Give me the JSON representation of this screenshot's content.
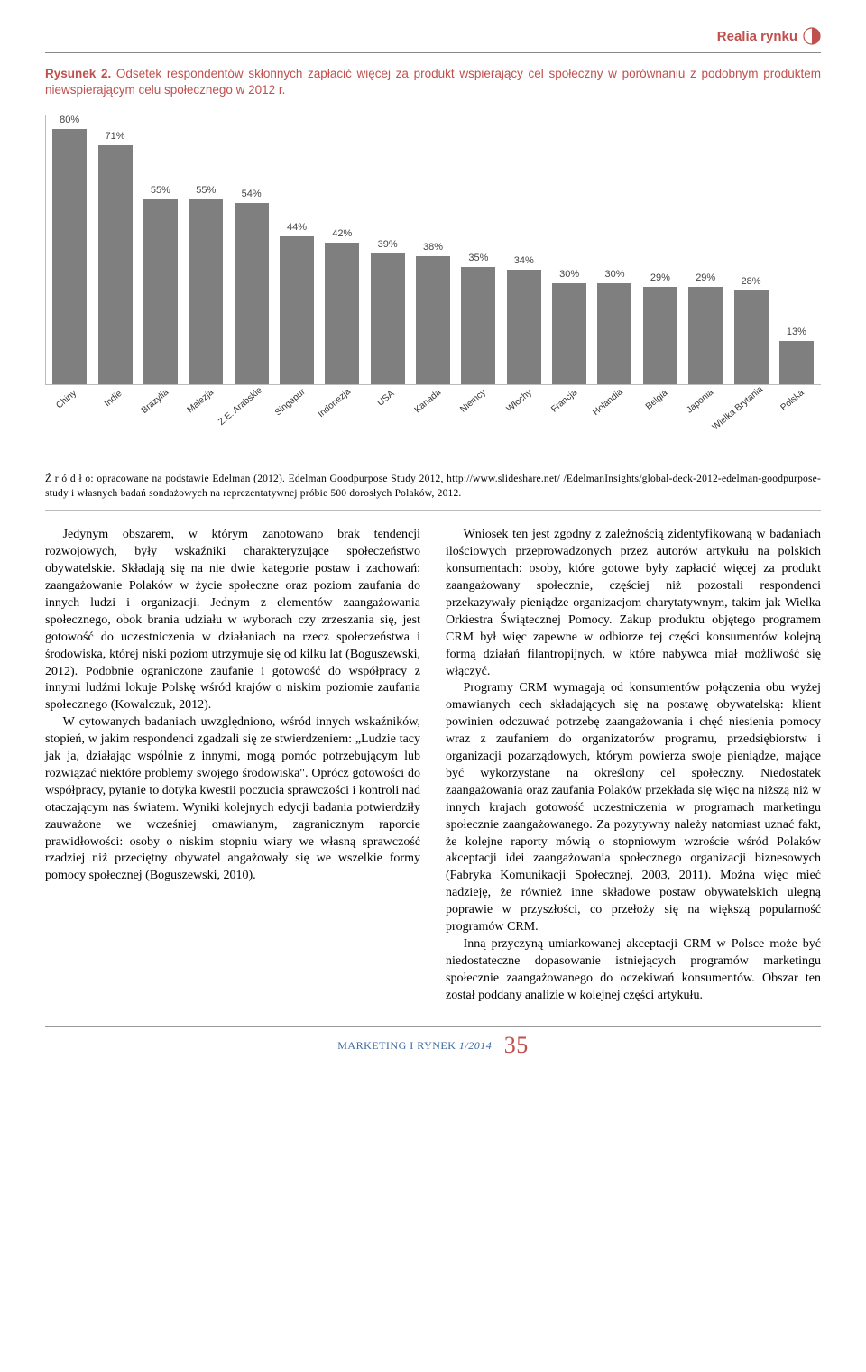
{
  "header": {
    "section_title": "Realia rynku"
  },
  "figure": {
    "label": "Rysunek 2.",
    "caption": "Odsetek respondentów skłonnych zapłacić więcej za produkt wspierający cel społeczny w porównaniu z podobnym produktem niewspierającym celu społecznego w 2012 r.",
    "type": "bar",
    "ylim": [
      0,
      80
    ],
    "bar_color": "#7f7f7f",
    "value_color": "#444444",
    "axis_color": "#bbbbbb",
    "background_color": "#ffffff",
    "value_fontsize": 11,
    "label_fontsize": 10,
    "categories": [
      "Chiny",
      "Indie",
      "Brazylia",
      "Malezja",
      "Z.E. Arabskie",
      "Singapur",
      "Indonezja",
      "USA",
      "Kanada",
      "Niemcy",
      "Włochy",
      "Francja",
      "Holandia",
      "Belgia",
      "Japonia",
      "Wielka Brytania",
      "Polska"
    ],
    "values": [
      80,
      71,
      55,
      55,
      54,
      44,
      42,
      39,
      38,
      35,
      34,
      30,
      30,
      29,
      29,
      28,
      13
    ],
    "value_labels": [
      "80%",
      "71%",
      "55%",
      "55%",
      "54%",
      "44%",
      "42%",
      "39%",
      "38%",
      "35%",
      "34%",
      "30%",
      "30%",
      "29%",
      "29%",
      "28%",
      "13%"
    ]
  },
  "source": {
    "prefix": "Ź r ó d ł o: ",
    "text": "opracowane na podstawie Edelman (2012). Edelman Goodpurpose Study 2012, http://www.slideshare.net/ /EdelmanInsights/global-deck-2012-edelman-goodpurpose-study i własnych badań sondażowych na reprezentatywnej próbie 500 dorosłych Polaków, 2012."
  },
  "body": {
    "p1": "Jedynym obszarem, w którym zanotowano brak tendencji rozwojowych, były wskaźniki charakteryzujące społeczeństwo obywatelskie. Składają się na nie dwie kategorie postaw i zachowań: zaangażowanie Polaków w życie społeczne oraz poziom zaufania do innych ludzi i organizacji. Jednym z elementów zaangażowania społecznego, obok brania udziału w wyborach czy zrzeszania się, jest gotowość do uczestniczenia w działaniach na rzecz społeczeństwa i środowiska, której niski poziom utrzymuje się od kilku lat (Boguszewski, 2012). Podobnie ograniczone zaufanie i gotowość do współpracy z innymi ludźmi lokuje Polskę wśród krajów o niskim poziomie zaufania społecznego (Kowalczuk, 2012).",
    "p2": "W cytowanych badaniach uwzględniono, wśród innych wskaźników, stopień, w jakim respondenci zgadzali się ze stwierdzeniem: „Ludzie tacy jak ja, działając wspólnie z innymi, mogą pomóc potrzebującym lub rozwiązać niektóre problemy swojego środowiska\". Oprócz gotowości do współpracy, pytanie to dotyka kwestii poczucia sprawczości i kontroli nad otaczającym nas światem. Wyniki kolejnych edycji badania potwierdziły zauważone we wcześniej omawianym, zagranicznym raporcie prawidłowości: osoby o niskim stopniu wiary we własną sprawczość rzadziej niż przeciętny obywatel angażowały się we wszelkie formy pomocy społecznej (Boguszewski, 2010).",
    "p3": "Wniosek ten jest zgodny z zależnością zidentyfikowaną w badaniach ilościowych przeprowadzonych przez autorów artykułu na polskich konsumentach: osoby, które gotowe były zapłacić więcej za produkt zaangażowany społecznie, częściej niż pozostali respondenci przekazywały pieniądze organizacjom charytatywnym, takim jak Wielka Orkiestra Świątecznej Pomocy. Zakup produktu objętego programem CRM był więc zapewne w odbiorze tej części konsumentów kolejną formą działań filantropijnych, w które nabywca miał możliwość się włączyć.",
    "p4": "Programy CRM wymagają od konsumentów połączenia obu wyżej omawianych cech składających się na postawę obywatelską: klient powinien odczuwać potrzebę zaangażowania i chęć niesienia pomocy wraz z zaufaniem do organizatorów programu, przedsiębiorstw i organizacji pozarządowych, którym powierza swoje pieniądze, mające być wykorzystane na określony cel społeczny. Niedostatek zaangażowania oraz zaufania Polaków przekłada się więc na niższą niż w innych krajach gotowość uczestniczenia w programach marketingu społecznie zaangażowanego. Za pozytywny należy natomiast uznać fakt, że kolejne raporty mówią o stopniowym wzroście wśród Polaków akceptacji idei zaangażowania społecznego organizacji biznesowych (Fabryka Komunikacji Społecznej, 2003, 2011). Można więc mieć nadzieję, że również inne składowe postaw obywatelskich ulegną poprawie w przyszłości, co przełoży się na większą popularność programów CRM.",
    "p5": "Inną przyczyną umiarkowanej akceptacji CRM w Polsce może być niedostateczne dopasowanie istniejących programów marketingu społecznie zaangażowanego do oczekiwań konsumentów. Obszar ten został poddany analizie w kolejnej części artykułu."
  },
  "footer": {
    "journal": "MARKETING  I  RYNEK",
    "issue": "1/2014",
    "page": "35"
  }
}
